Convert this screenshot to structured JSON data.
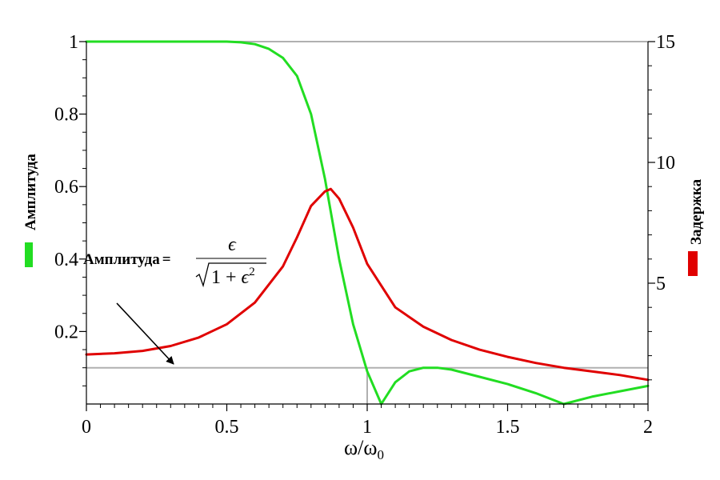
{
  "chart_data": {
    "type": "line",
    "xlabel": "ω/ω",
    "xlabel_sub": "0",
    "xlim": [
      0,
      2
    ],
    "y_left_lim": [
      0,
      1
    ],
    "y_right_lim": [
      0,
      15
    ],
    "x_ticks": [
      0,
      0.5,
      1,
      1.5,
      2
    ],
    "x_tick_labels": [
      "0",
      "0.5",
      "1",
      "1.5",
      "2"
    ],
    "y_left_ticks": [
      0.2,
      0.4,
      0.6,
      0.8,
      1
    ],
    "y_left_tick_labels": [
      "0.2",
      "0.4",
      "0.6",
      "0.8",
      "1"
    ],
    "y_right_ticks": [
      5,
      10,
      15
    ],
    "y_right_tick_labels": [
      "5",
      "10",
      "15"
    ],
    "left_axis_title": "Амплитуда",
    "right_axis_title": "Задержка",
    "colors": {
      "amplitude": "#22dd22",
      "delay": "#e00000",
      "guide": "#b0b0b0"
    },
    "series": [
      {
        "name": "Амплитуда",
        "axis": "left",
        "color": "#22dd22",
        "x": [
          0,
          0.2,
          0.4,
          0.5,
          0.55,
          0.6,
          0.65,
          0.7,
          0.75,
          0.8,
          0.85,
          0.9,
          0.95,
          1.0,
          1.05,
          1.1,
          1.15,
          1.2,
          1.25,
          1.3,
          1.4,
          1.5,
          1.6,
          1.7,
          1.8,
          1.9,
          2.0
        ],
        "y": [
          1,
          1,
          1,
          1,
          0.998,
          0.993,
          0.98,
          0.955,
          0.905,
          0.8,
          0.62,
          0.4,
          0.22,
          0.09,
          0.0,
          0.06,
          0.09,
          0.1,
          0.1,
          0.095,
          0.075,
          0.055,
          0.03,
          0.0,
          0.02,
          0.035,
          0.05
        ]
      },
      {
        "name": "Задержка",
        "axis": "right",
        "color": "#e00000",
        "x": [
          0,
          0.1,
          0.2,
          0.3,
          0.4,
          0.5,
          0.6,
          0.7,
          0.75,
          0.8,
          0.85,
          0.87,
          0.9,
          0.95,
          1.0,
          1.1,
          1.2,
          1.3,
          1.4,
          1.5,
          1.6,
          1.7,
          1.8,
          1.9,
          2.0
        ],
        "y": [
          2.05,
          2.1,
          2.2,
          2.4,
          2.75,
          3.3,
          4.2,
          5.7,
          6.9,
          8.2,
          8.8,
          8.9,
          8.5,
          7.3,
          5.8,
          4.0,
          3.2,
          2.65,
          2.25,
          1.95,
          1.7,
          1.5,
          1.35,
          1.2,
          1.0
        ]
      }
    ],
    "reference_lines": [
      {
        "kind": "horizontal",
        "axis": "left",
        "y": 0.1
      },
      {
        "kind": "horizontal",
        "axis": "left",
        "y": 1
      },
      {
        "kind": "vertical",
        "x": 1,
        "y_to": 0.1
      }
    ],
    "annotation": {
      "label": "Амплитуда",
      "equals": "=",
      "numerator": "ϵ",
      "denominator_one": "1 + ",
      "denominator_eps": "ϵ",
      "denominator_exp": "2"
    }
  }
}
